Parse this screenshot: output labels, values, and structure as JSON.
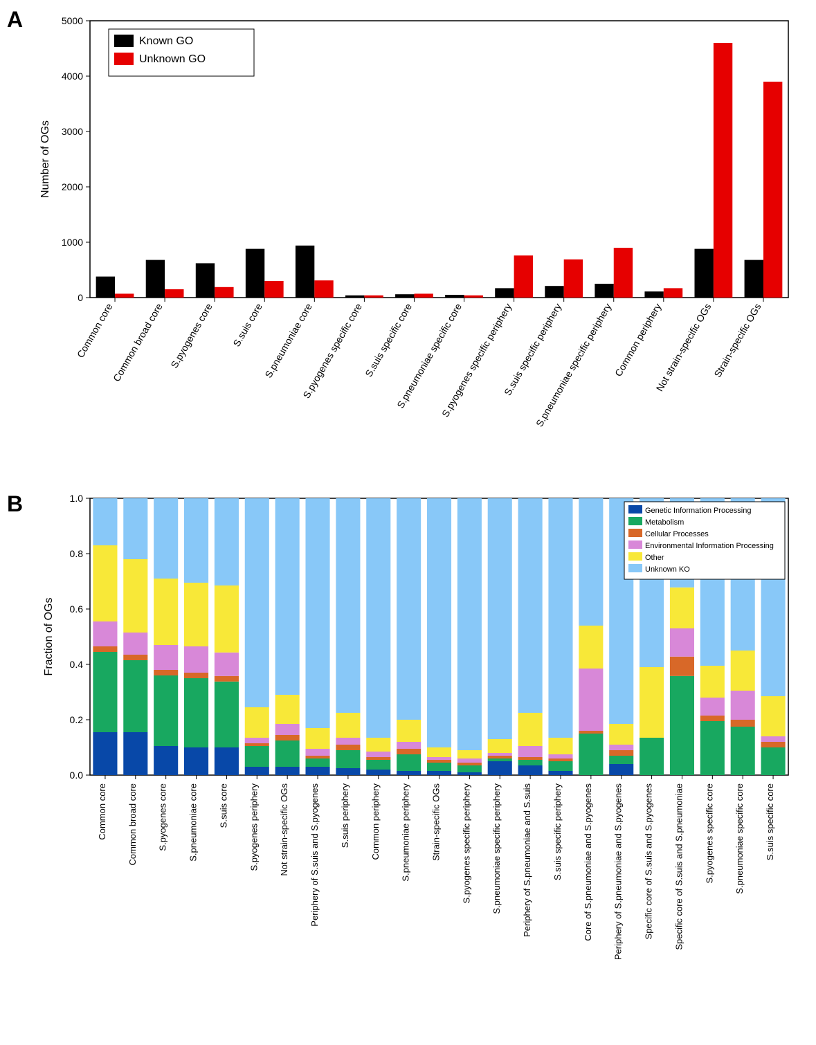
{
  "panelA": {
    "label": "A",
    "type": "grouped-bar",
    "ylabel": "Number of OGs",
    "ylim": [
      0,
      5000
    ],
    "ytick_step": 1000,
    "bar_width": 0.38,
    "background_color": "#ffffff",
    "grid_color": "#000000",
    "label_fontsize": 14,
    "ylabel_fontsize": 16,
    "legend": {
      "items": [
        {
          "label": "Known GO",
          "color": "#000000"
        },
        {
          "label": "Unknown GO",
          "color": "#e60000"
        }
      ],
      "position": "upper-left"
    },
    "categories": [
      "Common core",
      "Common broad core",
      "S.pyogenes core",
      "S.suis core",
      "S.pneumoniae core",
      "S.pyogenes specific core",
      "S.suis specific core",
      "S.pneumoniae specific core",
      "S.pyogenes specific periphery",
      "S.suis specific periphery",
      "S.pneumoniae specific periphery",
      "Common periphery",
      "Not strain-specific OGs",
      "Strain-specific OGs"
    ],
    "series": [
      {
        "name": "Known GO",
        "color": "#000000",
        "values": [
          380,
          680,
          620,
          880,
          940,
          40,
          60,
          50,
          170,
          210,
          250,
          110,
          880,
          680
        ]
      },
      {
        "name": "Unknown GO",
        "color": "#e60000",
        "values": [
          70,
          150,
          190,
          300,
          310,
          40,
          70,
          40,
          760,
          690,
          900,
          170,
          4600,
          3900
        ]
      }
    ]
  },
  "panelB": {
    "label": "B",
    "type": "stacked-bar",
    "ylabel": "Fraction of OGs",
    "ylim": [
      0,
      1.0
    ],
    "ytick_step": 0.2,
    "bar_width": 0.8,
    "background_color": "#ffffff",
    "label_fontsize": 13,
    "ylabel_fontsize": 16,
    "legend": {
      "items": [
        {
          "label": "Genetic Information Processing",
          "color": "#0848a8"
        },
        {
          "label": "Metabolism",
          "color": "#18a860"
        },
        {
          "label": "Cellular Processes",
          "color": "#d86828"
        },
        {
          "label": "Environmental Information Processing",
          "color": "#d888d8"
        },
        {
          "label": "Other",
          "color": "#f8e838"
        },
        {
          "label": "Unknown KO",
          "color": "#88c8f8"
        }
      ],
      "position": "upper-right"
    },
    "categories": [
      "Common core",
      "Common broad core",
      "S.pyogenes core",
      "S.pneumoniae core",
      "S.suis core",
      "S.pyogenes periphery",
      "Not strain-specific OGs",
      "Periphery of S.suis and S.pyogenes",
      "S.suis periphery",
      "Common periphery",
      "S.pneumoniae periphery",
      "Strain-specific OGs",
      "S.pyogenes specific periphery",
      "S.pneumoniae specific periphery",
      "Periphery of S.pneumoniae and S.suis",
      "S.suis specific periphery",
      "Core of S.pneumoniae and S.pyogenes",
      "Periphery of S.pneumoniae and S.pyogenes",
      "Specific core of S.suis and S.pyogenes",
      "Specific core of S.suis and S.pneumoniae",
      "S.pyogenes specific core",
      "S.pneumoniae specific core",
      "S.suis specific core"
    ],
    "stacks": [
      {
        "name": "Genetic Information Processing",
        "color": "#0848a8"
      },
      {
        "name": "Metabolism",
        "color": "#18a860"
      },
      {
        "name": "Cellular Processes",
        "color": "#d86828"
      },
      {
        "name": "Environmental Information Processing",
        "color": "#d888d8"
      },
      {
        "name": "Other",
        "color": "#f8e838"
      },
      {
        "name": "Unknown KO",
        "color": "#88c8f8"
      }
    ],
    "values": [
      [
        0.155,
        0.29,
        0.02,
        0.09,
        0.275,
        0.17
      ],
      [
        0.155,
        0.26,
        0.02,
        0.08,
        0.265,
        0.22
      ],
      [
        0.105,
        0.255,
        0.02,
        0.09,
        0.24,
        0.29
      ],
      [
        0.1,
        0.25,
        0.02,
        0.095,
        0.23,
        0.305
      ],
      [
        0.1,
        0.238,
        0.02,
        0.085,
        0.242,
        0.315
      ],
      [
        0.03,
        0.075,
        0.01,
        0.02,
        0.11,
        0.755
      ],
      [
        0.03,
        0.095,
        0.02,
        0.04,
        0.105,
        0.71
      ],
      [
        0.03,
        0.03,
        0.01,
        0.025,
        0.075,
        0.83
      ],
      [
        0.025,
        0.065,
        0.02,
        0.025,
        0.09,
        0.775
      ],
      [
        0.02,
        0.035,
        0.01,
        0.02,
        0.05,
        0.865
      ],
      [
        0.015,
        0.06,
        0.02,
        0.025,
        0.08,
        0.8
      ],
      [
        0.015,
        0.03,
        0.01,
        0.01,
        0.035,
        0.9
      ],
      [
        0.01,
        0.025,
        0.01,
        0.015,
        0.03,
        0.91
      ],
      [
        0.05,
        0.01,
        0.01,
        0.01,
        0.05,
        0.87
      ],
      [
        0.035,
        0.02,
        0.01,
        0.04,
        0.12,
        0.775
      ],
      [
        0.015,
        0.035,
        0.01,
        0.015,
        0.06,
        0.865
      ],
      [
        0.0,
        0.15,
        0.01,
        0.225,
        0.155,
        0.46
      ],
      [
        0.04,
        0.03,
        0.02,
        0.02,
        0.075,
        0.815
      ],
      [
        0.0,
        0.135,
        0.0,
        0.0,
        0.255,
        0.61
      ],
      [
        0.0,
        0.358,
        0.07,
        0.102,
        0.148,
        0.322
      ],
      [
        0.0,
        0.195,
        0.02,
        0.065,
        0.115,
        0.605
      ],
      [
        0.0,
        0.175,
        0.025,
        0.105,
        0.145,
        0.55
      ],
      [
        0.0,
        0.1,
        0.02,
        0.02,
        0.145,
        0.715
      ]
    ]
  }
}
